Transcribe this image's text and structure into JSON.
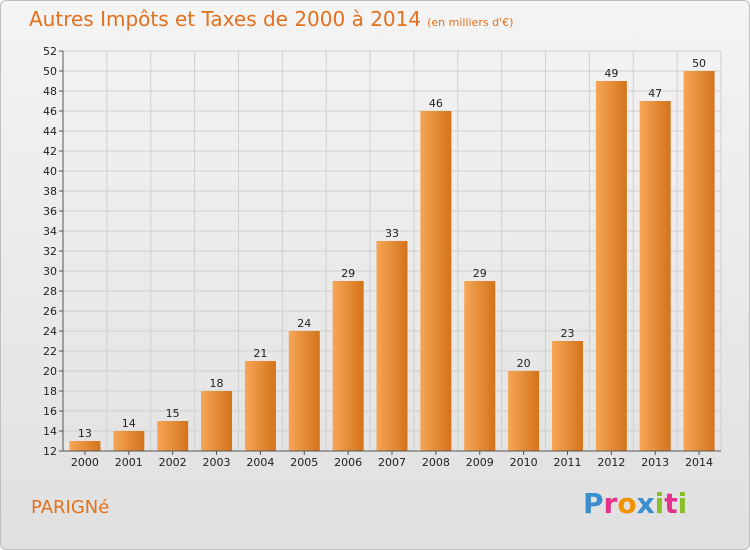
{
  "title": "Autres Impôts et Taxes de 2000 à 2014",
  "unit": "(en milliers d'€)",
  "place": "PARIGNé",
  "logo": {
    "letters": [
      {
        "ch": "P",
        "color": "#3a8fd0"
      },
      {
        "ch": "r",
        "color": "#e6328a"
      },
      {
        "ch": "o",
        "color": "#f39200"
      },
      {
        "ch": "x",
        "color": "#3a8fd0"
      },
      {
        "ch": "i",
        "color": "#8bbf2a"
      },
      {
        "ch": "t",
        "color": "#e6328a"
      },
      {
        "ch": "i",
        "color": "#8bbf2a"
      }
    ]
  },
  "colors": {
    "bar_light": "#f6a656",
    "bar_dark": "#d4731a",
    "accent": "#e2711d"
  },
  "chart_data": {
    "type": "bar",
    "categories": [
      "2000",
      "2001",
      "2002",
      "2003",
      "2004",
      "2005",
      "2006",
      "2007",
      "2008",
      "2009",
      "2010",
      "2011",
      "2012",
      "2013",
      "2014"
    ],
    "values": [
      13,
      14,
      15,
      18,
      21,
      24,
      29,
      33,
      46,
      29,
      20,
      23,
      49,
      47,
      50
    ],
    "title": "Autres Impôts et Taxes de 2000 à 2014",
    "xlabel": "",
    "ylabel": "",
    "ylim": [
      12,
      52
    ],
    "yticks": [
      12,
      14,
      16,
      18,
      20,
      22,
      24,
      26,
      28,
      30,
      32,
      34,
      36,
      38,
      40,
      42,
      44,
      46,
      48,
      50,
      52
    ],
    "grid": true,
    "legend": "none"
  }
}
